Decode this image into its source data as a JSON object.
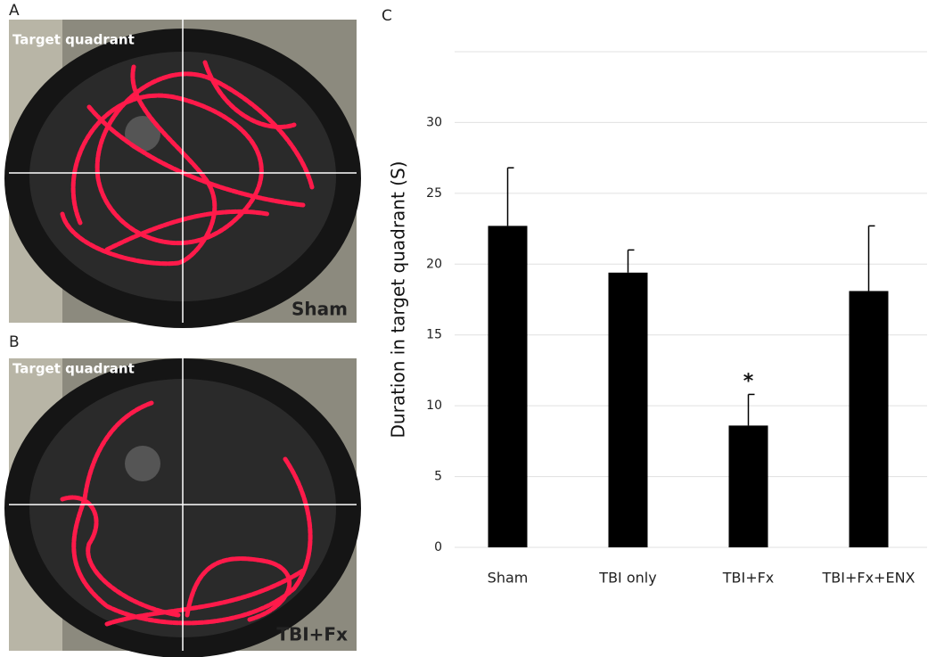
{
  "panels": {
    "a": {
      "label": "A",
      "corner_text": "Target quadrant",
      "group": "Sham"
    },
    "b": {
      "label": "B",
      "corner_text": "Target quadrant",
      "group": "TBI+Fx"
    },
    "c": {
      "label": "C"
    }
  },
  "chart_data": {
    "type": "bar",
    "y_label": "Duration in target quadrant (S)",
    "categories": [
      "Sham",
      "TBI only",
      "TBI+Fx",
      "TBI+Fx+ENX"
    ],
    "values": [
      22.7,
      19.4,
      8.6,
      18.1
    ],
    "errors": [
      4.1,
      1.6,
      2.2,
      4.6
    ],
    "color": "#000000",
    "ylim": [
      0,
      35
    ],
    "yticks": [
      0,
      5,
      10,
      15,
      20,
      25,
      30
    ],
    "grid": true,
    "annotations": [
      {
        "label": "*",
        "category": "TBI+Fx"
      }
    ]
  }
}
